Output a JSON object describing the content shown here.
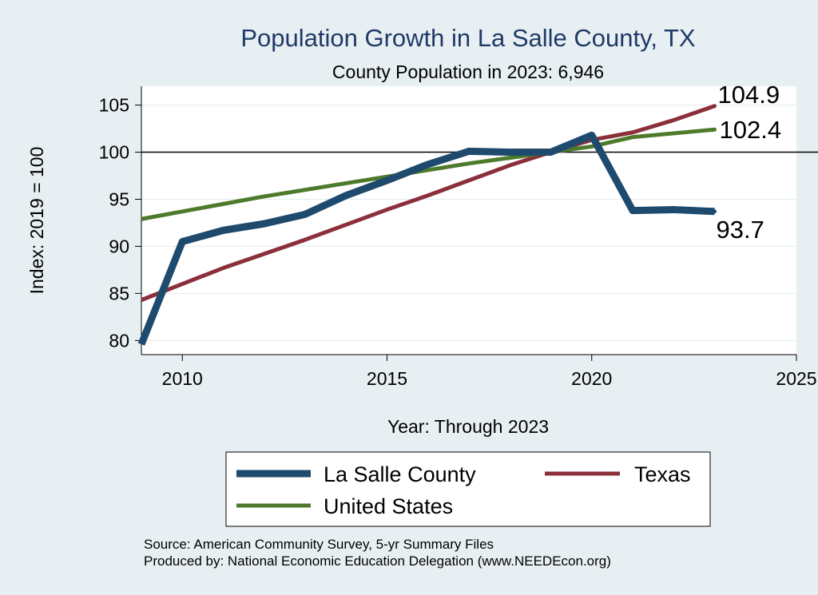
{
  "chart_data": {
    "type": "line",
    "title": "Population Growth in La Salle County, TX",
    "subtitle": "County Population in 2023: 6,946",
    "xlabel": "Year: Through 2023",
    "ylabel": "Index: 2019 = 100",
    "xlim": [
      2009,
      2025
    ],
    "ylim": [
      78.5,
      107
    ],
    "xticks": [
      2010,
      2015,
      2020,
      2025
    ],
    "yticks": [
      80,
      85,
      90,
      95,
      100,
      105
    ],
    "reference_line": 100,
    "grid": "horizontal",
    "legend_position": "bottom",
    "series": [
      {
        "name": "La Salle  County",
        "color": "#1e4a6e",
        "width": 9,
        "x": [
          2009,
          2010,
          2011,
          2012,
          2013,
          2014,
          2015,
          2016,
          2017,
          2018,
          2019,
          2020,
          2021,
          2022,
          2023
        ],
        "values": [
          79.6,
          90.5,
          91.7,
          92.4,
          93.4,
          95.4,
          97.0,
          98.7,
          100.1,
          100.0,
          100.0,
          101.8,
          93.8,
          93.9,
          93.7
        ],
        "end_label": "93.7"
      },
      {
        "name": "Texas",
        "color": "#8b2f3a",
        "width": 5,
        "x": [
          2009,
          2010,
          2011,
          2012,
          2013,
          2014,
          2015,
          2016,
          2017,
          2018,
          2019,
          2020,
          2021,
          2022,
          2023
        ],
        "values": [
          84.3,
          86.0,
          87.7,
          89.2,
          90.7,
          92.3,
          93.9,
          95.4,
          97.0,
          98.6,
          100.0,
          101.3,
          102.1,
          103.4,
          104.9
        ],
        "end_label": "104.9"
      },
      {
        "name": "United States",
        "color": "#4e7a2c",
        "width": 5,
        "x": [
          2009,
          2010,
          2011,
          2012,
          2013,
          2014,
          2015,
          2016,
          2017,
          2018,
          2019,
          2020,
          2021,
          2022,
          2023
        ],
        "values": [
          92.9,
          93.7,
          94.5,
          95.3,
          96.0,
          96.7,
          97.4,
          98.1,
          98.8,
          99.4,
          100.0,
          100.6,
          101.6,
          102.0,
          102.4
        ],
        "end_label": "102.4"
      }
    ],
    "legend": [
      "La Salle  County",
      "Texas",
      "United States"
    ]
  },
  "notes": {
    "source": "Source: American Community Survey, 5-yr Summary Files",
    "produced": "Produced by: National Economic Education Delegation (www.NEEDEcon.org)"
  }
}
